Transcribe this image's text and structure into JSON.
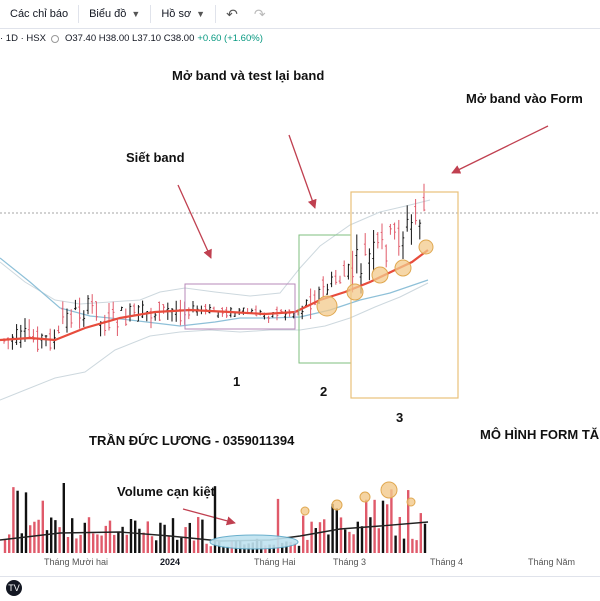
{
  "toolbar": {
    "alerts_label": "Các chỉ báo",
    "charts_label": "Biểu đồ",
    "profile_label": "Hồ sơ",
    "undo_icon": "undo-icon",
    "redo_icon": "redo-icon"
  },
  "legend": {
    "symbol": "· 1D · HSX",
    "open": "O37.40",
    "high": "H38.00",
    "low": "L37.10",
    "close": "C38.00",
    "change": "+0.60 (+1.60%)"
  },
  "annotations": {
    "band_squeeze": "Siết band",
    "band_open_retest": "Mở band và test lại band",
    "band_open_form": "Mở band vào Form",
    "phase1": "1",
    "phase2": "2",
    "phase3": "3",
    "author": "TRẦN ĐỨC LƯƠNG - 0359011394",
    "pattern": "MÔ HÌNH FORM TĂ",
    "volume_dry": "Volume cạn kiệt"
  },
  "x_axis": {
    "labels": [
      "Tháng Mười hai",
      "2024",
      "Tháng Hai",
      "Tháng 3",
      "Tháng 4",
      "Tháng Năm"
    ]
  },
  "colors": {
    "up": "#111111",
    "down": "#e05a6a",
    "ma": "#e74c3c",
    "bb": "#a9c9dc",
    "box1": "#b788b8",
    "box2": "#7fbf7f",
    "box3": "#e8c07a",
    "arrow": "#c04050",
    "marker": "#f3c98b"
  },
  "chart_data": {
    "type": "candlestick",
    "symbol_exchange": "HSX",
    "timeframe": "1D",
    "last_bar": {
      "open": 37.4,
      "high": 38.0,
      "low": 37.1,
      "close": 38.0,
      "change": 0.6,
      "change_pct": 1.6
    },
    "period": {
      "start": "Tháng Mười hai",
      "end": "Tháng 4"
    },
    "phases": [
      {
        "label": "1",
        "annotation": "Siết band"
      },
      {
        "label": "2",
        "annotation": "Mở band và test lại band"
      },
      {
        "label": "3",
        "annotation": "Mở band vào Form"
      }
    ],
    "volume_note": "Volume cạn kiệt"
  }
}
